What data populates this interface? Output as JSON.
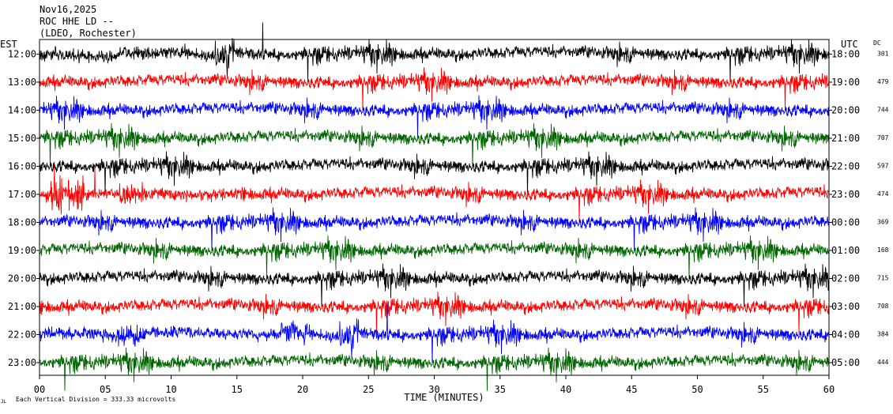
{
  "header": {
    "date": "Nov16,2025",
    "station": "ROC HHE LD --",
    "network": "(LDEO, Rochester)"
  },
  "chart_data": {
    "type": "line",
    "chart_kind": "helicorder seismogram",
    "left_axis_label": "EST",
    "right_axis_label": "UTC",
    "dc_label": "DC",
    "xlabel": "TIME (MINUTES)",
    "xlim": [
      0,
      60
    ],
    "x_ticks": [
      0,
      5,
      10,
      15,
      20,
      25,
      30,
      35,
      40,
      45,
      50,
      55,
      60
    ],
    "x_tick_labels": [
      "00",
      "05",
      "10",
      "15",
      "20",
      "25",
      "30",
      "35",
      "40",
      "45",
      "50",
      "55",
      "60"
    ],
    "footer_note": "Each Vertical Division = 333.33 microvolts",
    "corner_mark": "JL",
    "grid": false,
    "colors": {
      "black": "#000000",
      "red": "#ff0000",
      "blue": "#0000ff",
      "green": "#006400"
    },
    "traces": [
      {
        "est": "12:00",
        "utc": "18:00",
        "dc": "301",
        "color": "#000000"
      },
      {
        "est": "13:00",
        "utc": "19:00",
        "dc": "479",
        "color": "#ff0000"
      },
      {
        "est": "14:00",
        "utc": "20:00",
        "dc": "744",
        "color": "#0000ff"
      },
      {
        "est": "15:00",
        "utc": "21:00",
        "dc": "707",
        "color": "#006400"
      },
      {
        "est": "16:00",
        "utc": "22:00",
        "dc": "597",
        "color": "#000000"
      },
      {
        "est": "17:00",
        "utc": "23:00",
        "dc": "474",
        "color": "#ff0000"
      },
      {
        "est": "18:00",
        "utc": "00:00",
        "dc": "369",
        "color": "#0000ff"
      },
      {
        "est": "19:00",
        "utc": "01:00",
        "dc": "168",
        "color": "#006400"
      },
      {
        "est": "20:00",
        "utc": "02:00",
        "dc": "715",
        "color": "#000000"
      },
      {
        "est": "21:00",
        "utc": "03:00",
        "dc": "708",
        "color": "#ff0000"
      },
      {
        "est": "22:00",
        "utc": "04:00",
        "dc": "384",
        "color": "#0000ff"
      },
      {
        "est": "23:00",
        "utc": "05:00",
        "dc": "444",
        "color": "#006400"
      }
    ]
  }
}
